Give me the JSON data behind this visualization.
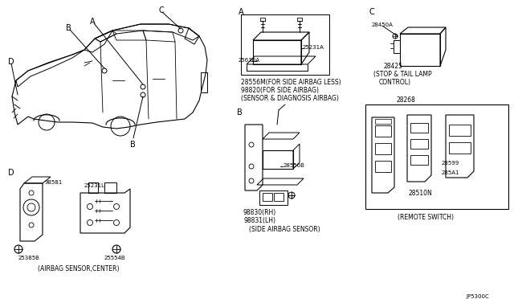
{
  "bg_color": "#ffffff",
  "fig_width": 6.4,
  "fig_height": 3.72,
  "dpi": 100,
  "labels": {
    "section_A_line1": "28556M(FOR SIDE AIRBAG LESS)",
    "section_A_line2": "98820(FOR SIDE AIRBAG)",
    "section_A_line3": "(SENSOR & DIAGNOSIS AIRBAG)",
    "part_25630A": "25630A",
    "part_25231A": "25231A",
    "section_B_line1": "98830(RH)",
    "section_B_line2": "98831(LH)",
    "section_B_line3": "(SIDE AIRBAG SENSOR)",
    "part_28556B": "28556B",
    "section_C_line1": "(STOP & TAIL LAMP",
    "section_C_line2": "CONTROL)",
    "part_28450A": "28450A",
    "part_28425": "28425",
    "part_28268": "28268",
    "part_28599": "28599",
    "part_285A1": "285A1",
    "part_28510N": "28510N",
    "section_D_line1": "(AIRBAG SENSOR,CENTER)",
    "part_98581": "98581",
    "part_25231L": "25231L",
    "part_25385B": "25385B",
    "part_25554B": "25554B",
    "label_A": "A",
    "label_B": "B",
    "label_C": "C",
    "label_D": "D",
    "footnote": "JP5300C"
  },
  "font_size_label": 7,
  "font_size_small": 5.5,
  "line_color": "#000000",
  "text_color": "#000000"
}
